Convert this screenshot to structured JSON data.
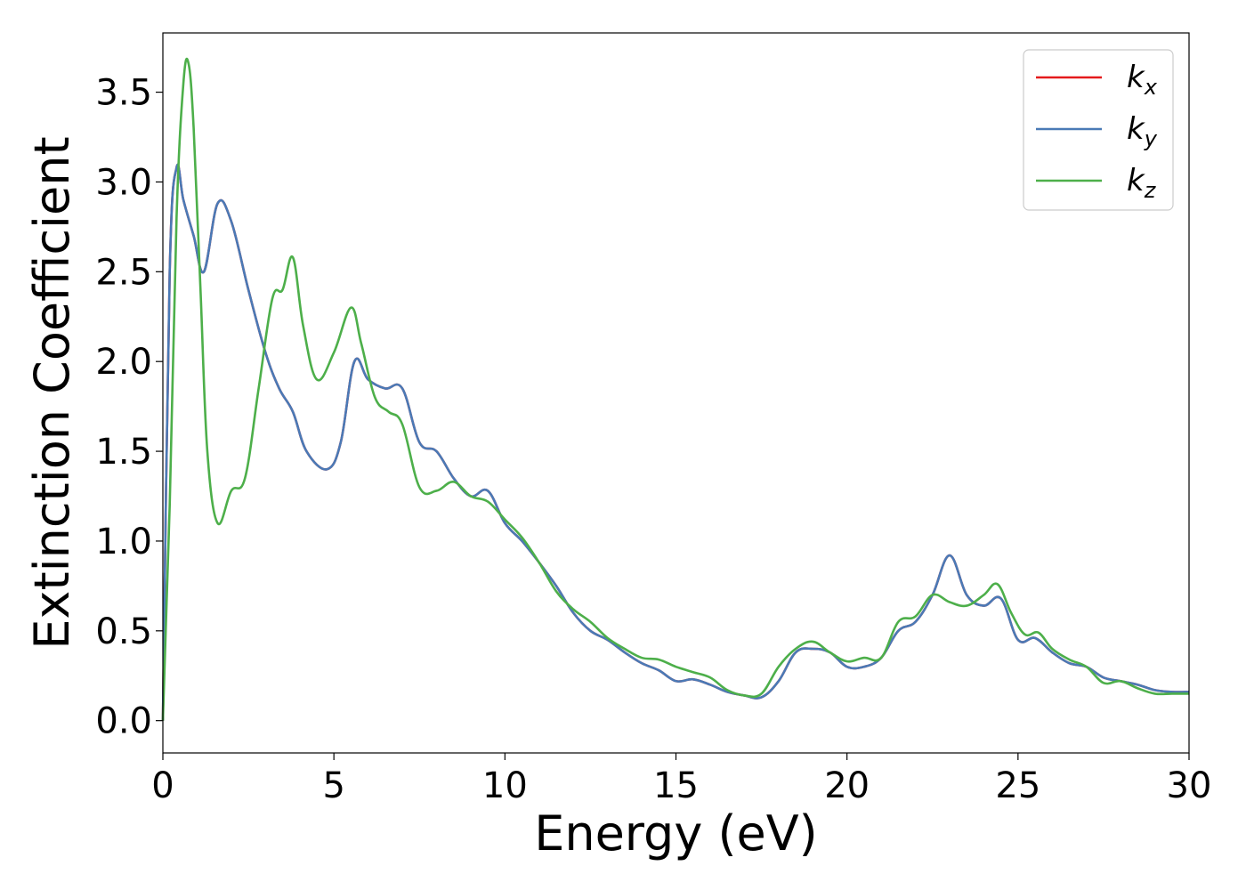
{
  "chart_data": {
    "type": "line",
    "title": "",
    "xlabel": "Energy (eV)",
    "ylabel": "Extinction Coefficient",
    "xlim": [
      0,
      30
    ],
    "ylim": [
      -0.18,
      3.83
    ],
    "xticks": [
      0,
      5,
      10,
      15,
      20,
      25,
      30
    ],
    "yticks": [
      0.0,
      0.5,
      1.0,
      1.5,
      2.0,
      2.5,
      3.0,
      3.5
    ],
    "xtick_labels": [
      "0",
      "5",
      "10",
      "15",
      "20",
      "25",
      "30"
    ],
    "ytick_labels": [
      "0.0",
      "0.5",
      "1.0",
      "1.5",
      "2.0",
      "2.5",
      "3.0",
      "3.5"
    ],
    "grid": false,
    "legend_position": "top-right",
    "series": [
      {
        "name": "k_x",
        "color": "#e41a1c",
        "x": [
          0,
          0.2,
          0.4,
          0.6,
          0.9,
          1.2,
          1.6,
          2.0,
          2.5,
          3.0,
          3.4,
          3.8,
          4.2,
          4.8,
          5.2,
          5.6,
          6.0,
          6.5,
          7.0,
          7.5,
          8.0,
          8.5,
          9.0,
          9.5,
          10.0,
          10.5,
          11.0,
          11.5,
          12.0,
          12.5,
          13.0,
          13.5,
          14.0,
          14.5,
          15.0,
          15.5,
          16.0,
          16.5,
          17.0,
          17.5,
          18.0,
          18.5,
          19.0,
          19.5,
          20.0,
          20.5,
          21.0,
          21.5,
          22.0,
          22.5,
          23.0,
          23.5,
          24.0,
          24.5,
          25.0,
          25.5,
          26.0,
          26.5,
          27.0,
          27.5,
          28.0,
          28.5,
          29.0,
          29.5,
          30.0
        ],
        "y": [
          0.0,
          2.5,
          3.08,
          2.9,
          2.7,
          2.5,
          2.88,
          2.78,
          2.4,
          2.05,
          1.85,
          1.72,
          1.5,
          1.4,
          1.55,
          2.0,
          1.9,
          1.85,
          1.85,
          1.55,
          1.5,
          1.35,
          1.25,
          1.28,
          1.1,
          1.0,
          0.88,
          0.75,
          0.6,
          0.5,
          0.45,
          0.38,
          0.32,
          0.28,
          0.22,
          0.23,
          0.2,
          0.16,
          0.14,
          0.13,
          0.22,
          0.38,
          0.4,
          0.38,
          0.3,
          0.3,
          0.35,
          0.5,
          0.55,
          0.7,
          0.92,
          0.7,
          0.64,
          0.68,
          0.45,
          0.46,
          0.38,
          0.32,
          0.3,
          0.24,
          0.22,
          0.2,
          0.17,
          0.16,
          0.16
        ]
      },
      {
        "name": "k_y",
        "color": "#4a7ab6",
        "x": [
          0,
          0.2,
          0.4,
          0.6,
          0.9,
          1.2,
          1.6,
          2.0,
          2.5,
          3.0,
          3.4,
          3.8,
          4.2,
          4.8,
          5.2,
          5.6,
          6.0,
          6.5,
          7.0,
          7.5,
          8.0,
          8.5,
          9.0,
          9.5,
          10.0,
          10.5,
          11.0,
          11.5,
          12.0,
          12.5,
          13.0,
          13.5,
          14.0,
          14.5,
          15.0,
          15.5,
          16.0,
          16.5,
          17.0,
          17.5,
          18.0,
          18.5,
          19.0,
          19.5,
          20.0,
          20.5,
          21.0,
          21.5,
          22.0,
          22.5,
          23.0,
          23.5,
          24.0,
          24.5,
          25.0,
          25.5,
          26.0,
          26.5,
          27.0,
          27.5,
          28.0,
          28.5,
          29.0,
          29.5,
          30.0
        ],
        "y": [
          0.0,
          2.5,
          3.08,
          2.9,
          2.7,
          2.5,
          2.88,
          2.78,
          2.4,
          2.05,
          1.85,
          1.72,
          1.5,
          1.4,
          1.55,
          2.0,
          1.9,
          1.85,
          1.85,
          1.55,
          1.5,
          1.35,
          1.25,
          1.28,
          1.1,
          1.0,
          0.88,
          0.75,
          0.6,
          0.5,
          0.45,
          0.38,
          0.32,
          0.28,
          0.22,
          0.23,
          0.2,
          0.16,
          0.14,
          0.13,
          0.22,
          0.38,
          0.4,
          0.38,
          0.3,
          0.3,
          0.35,
          0.5,
          0.55,
          0.7,
          0.92,
          0.7,
          0.64,
          0.68,
          0.45,
          0.46,
          0.38,
          0.32,
          0.3,
          0.24,
          0.22,
          0.2,
          0.17,
          0.16,
          0.16
        ]
      },
      {
        "name": "k_z",
        "color": "#4daf4a",
        "x": [
          0,
          0.2,
          0.4,
          0.6,
          0.75,
          0.9,
          1.1,
          1.3,
          1.6,
          2.0,
          2.4,
          2.8,
          3.2,
          3.5,
          3.8,
          4.1,
          4.5,
          5.0,
          5.5,
          5.8,
          6.2,
          6.6,
          7.0,
          7.5,
          8.0,
          8.5,
          9.0,
          9.5,
          10.0,
          10.5,
          11.0,
          11.5,
          12.0,
          12.5,
          13.0,
          13.5,
          14.0,
          14.5,
          15.0,
          15.5,
          16.0,
          16.5,
          17.0,
          17.5,
          18.0,
          18.5,
          19.0,
          19.5,
          20.0,
          20.5,
          21.0,
          21.5,
          22.0,
          22.5,
          23.0,
          23.5,
          24.0,
          24.4,
          24.8,
          25.2,
          25.6,
          26.0,
          26.5,
          27.0,
          27.5,
          28.0,
          28.5,
          29.0,
          29.5,
          30.0
        ],
        "y": [
          0.0,
          1.2,
          2.8,
          3.55,
          3.66,
          3.3,
          2.4,
          1.5,
          1.1,
          1.28,
          1.35,
          1.85,
          2.35,
          2.4,
          2.58,
          2.2,
          1.9,
          2.05,
          2.3,
          2.1,
          1.8,
          1.72,
          1.65,
          1.3,
          1.28,
          1.33,
          1.25,
          1.22,
          1.12,
          1.02,
          0.88,
          0.72,
          0.62,
          0.55,
          0.46,
          0.4,
          0.35,
          0.34,
          0.3,
          0.27,
          0.24,
          0.17,
          0.14,
          0.15,
          0.3,
          0.4,
          0.44,
          0.38,
          0.33,
          0.35,
          0.35,
          0.55,
          0.58,
          0.7,
          0.66,
          0.64,
          0.7,
          0.76,
          0.6,
          0.48,
          0.49,
          0.4,
          0.34,
          0.3,
          0.21,
          0.22,
          0.18,
          0.15,
          0.15,
          0.15
        ]
      }
    ]
  },
  "legend": {
    "items": [
      {
        "base": "k",
        "sub": "x",
        "color": "#e41a1c"
      },
      {
        "base": "k",
        "sub": "y",
        "color": "#4a7ab6"
      },
      {
        "base": "k",
        "sub": "z",
        "color": "#4daf4a"
      }
    ]
  }
}
